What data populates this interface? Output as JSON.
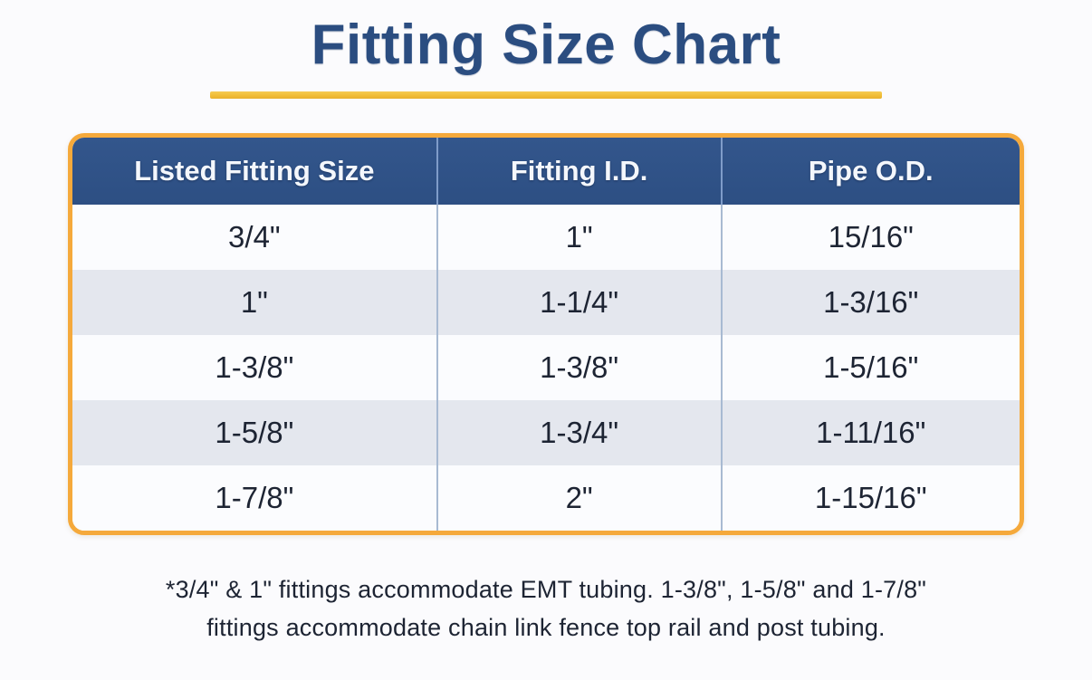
{
  "page": {
    "title": "Fitting Size Chart",
    "footnote_line1": "*3/4\" & 1\" fittings accommodate EMT tubing.  1-3/8\", 1-5/8\" and 1-7/8\"",
    "footnote_line2": "fittings accommodate chain link fence top rail and post tubing."
  },
  "chart_data": {
    "type": "table",
    "title": "Fitting Size Chart",
    "columns": [
      "Listed Fitting Size",
      "Fitting I.D.",
      "Pipe O.D."
    ],
    "rows": [
      [
        "3/4\"",
        "1\"",
        "15/16\""
      ],
      [
        "1\"",
        "1-1/4\"",
        "1-3/16\""
      ],
      [
        "1-3/8\"",
        "1-3/8\"",
        "1-5/16\""
      ],
      [
        "1-5/8\"",
        "1-3/4\"",
        "1-11/16\""
      ],
      [
        "1-7/8\"",
        "2\"",
        "1-15/16\""
      ]
    ]
  },
  "colors": {
    "title_navy": "#2b4d80",
    "header_blue": "#2e5086",
    "gold_border": "#f5a93b",
    "gold_underline": "#f0bd36",
    "row_alt_gray": "#e4e7ee",
    "row_white": "#fbfcfe",
    "divider_blue_gray": "#a8bad2",
    "cell_text": "#1d2433"
  }
}
